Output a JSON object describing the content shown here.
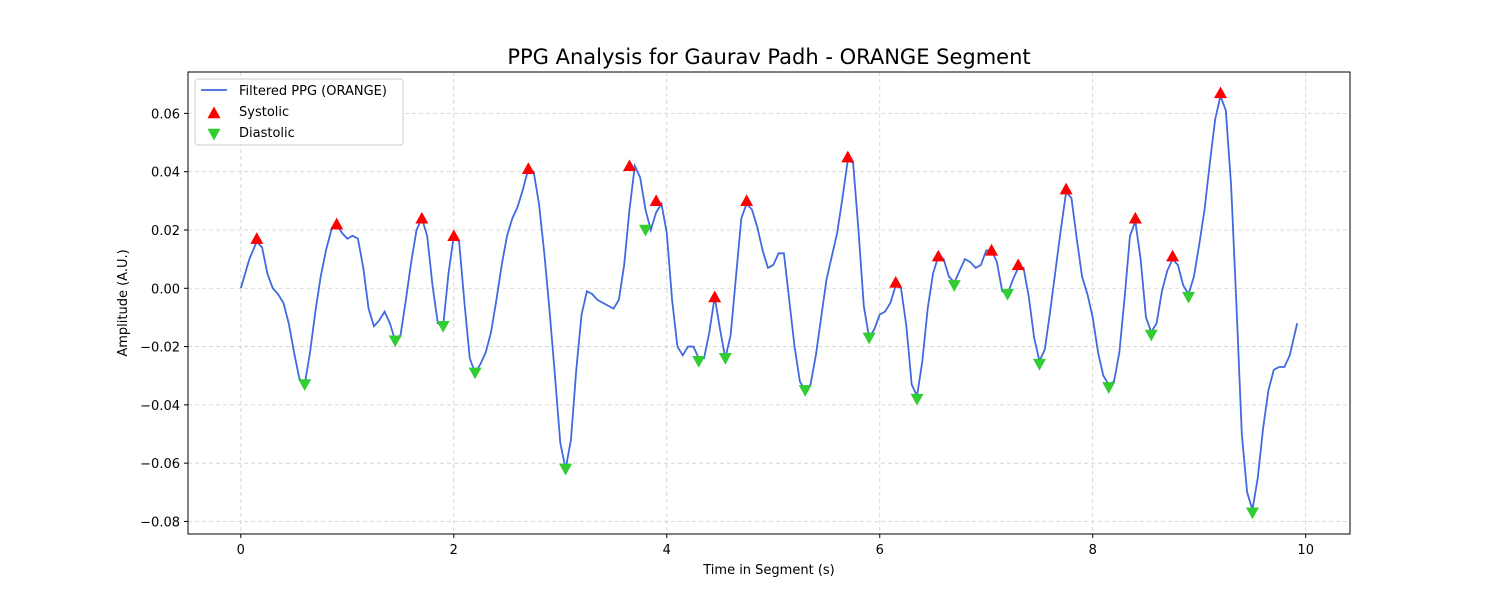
{
  "chart_data": {
    "type": "line",
    "title": "PPG Analysis for Gaurav Padh - ORANGE Segment",
    "xlabel": "Time in Segment (s)",
    "ylabel": "Amplitude (A.U.)",
    "xlim": [
      -0.496,
      10.416
    ],
    "ylim": [
      -0.0843,
      0.0742
    ],
    "xticks": [
      0,
      2,
      4,
      6,
      8,
      10
    ],
    "yticks": [
      {
        "value": -0.08,
        "label": "−0.08"
      },
      {
        "value": -0.06,
        "label": "−0.06"
      },
      {
        "value": -0.04,
        "label": "−0.04"
      },
      {
        "value": -0.02,
        "label": "−0.02"
      },
      {
        "value": 0,
        "label": "0.00"
      },
      {
        "value": 0.02,
        "label": "0.02"
      },
      {
        "value": 0.04,
        "label": "0.04"
      },
      {
        "value": 0.06,
        "label": "0.06"
      }
    ],
    "grid": true,
    "legend": "upper left",
    "series": [
      {
        "name": "Filtered PPG (ORANGE)",
        "color": "#4169e1",
        "marker": "line",
        "x": [
          0,
          0.08,
          0.15,
          0.2,
          0.25,
          0.3,
          0.35,
          0.4,
          0.45,
          0.5,
          0.55,
          0.6,
          0.65,
          0.7,
          0.75,
          0.8,
          0.85,
          0.9,
          0.95,
          1.0,
          1.05,
          1.1,
          1.15,
          1.2,
          1.25,
          1.3,
          1.35,
          1.4,
          1.45,
          1.5,
          1.55,
          1.6,
          1.65,
          1.7,
          1.75,
          1.8,
          1.85,
          1.9,
          1.95,
          2.0,
          2.05,
          2.1,
          2.15,
          2.2,
          2.25,
          2.3,
          2.35,
          2.4,
          2.45,
          2.5,
          2.55,
          2.6,
          2.65,
          2.7,
          2.75,
          2.8,
          2.85,
          2.9,
          2.95,
          3.0,
          3.05,
          3.1,
          3.15,
          3.2,
          3.25,
          3.3,
          3.35,
          3.4,
          3.45,
          3.5,
          3.55,
          3.6,
          3.65,
          3.7,
          3.75,
          3.8,
          3.85,
          3.9,
          3.95,
          4.0,
          4.05,
          4.1,
          4.15,
          4.2,
          4.25,
          4.3,
          4.35,
          4.4,
          4.45,
          4.5,
          4.55,
          4.6,
          4.65,
          4.7,
          4.75,
          4.8,
          4.85,
          4.9,
          4.95,
          5.0,
          5.05,
          5.1,
          5.15,
          5.2,
          5.25,
          5.3,
          5.35,
          5.4,
          5.45,
          5.5,
          5.55,
          5.6,
          5.65,
          5.7,
          5.75,
          5.8,
          5.85,
          5.9,
          5.95,
          6.0,
          6.05,
          6.1,
          6.15,
          6.2,
          6.25,
          6.3,
          6.35,
          6.4,
          6.45,
          6.5,
          6.55,
          6.6,
          6.65,
          6.7,
          6.75,
          6.8,
          6.85,
          6.9,
          6.95,
          7.0,
          7.05,
          7.1,
          7.15,
          7.2,
          7.25,
          7.3,
          7.35,
          7.4,
          7.45,
          7.5,
          7.55,
          7.6,
          7.65,
          7.7,
          7.75,
          7.8,
          7.85,
          7.9,
          7.95,
          8.0,
          8.05,
          8.1,
          8.15,
          8.2,
          8.25,
          8.3,
          8.35,
          8.4,
          8.45,
          8.5,
          8.55,
          8.6,
          8.65,
          8.7,
          8.75,
          8.8,
          8.85,
          8.9,
          8.95,
          9.0,
          9.05,
          9.1,
          9.15,
          9.2,
          9.25,
          9.3,
          9.35,
          9.4,
          9.45,
          9.5,
          9.55,
          9.6,
          9.65,
          9.7,
          9.75,
          9.8,
          9.85,
          9.92
        ],
        "values": [
          0,
          0.01,
          0.016,
          0.014,
          0.005,
          0,
          -0.002,
          -0.005,
          -0.012,
          -0.022,
          -0.031,
          -0.033,
          -0.022,
          -0.008,
          0.004,
          0.013,
          0.02,
          0.022,
          0.019,
          0.017,
          0.018,
          0.017,
          0.007,
          -0.007,
          -0.013,
          -0.011,
          -0.008,
          -0.012,
          -0.018,
          -0.016,
          -0.004,
          0.009,
          0.02,
          0.024,
          0.018,
          0.001,
          -0.012,
          -0.013,
          0.005,
          0.018,
          0.016,
          -0.005,
          -0.024,
          -0.029,
          -0.026,
          -0.022,
          -0.015,
          -0.004,
          0.008,
          0.018,
          0.024,
          0.028,
          0.034,
          0.041,
          0.04,
          0.029,
          0.012,
          -0.008,
          -0.03,
          -0.053,
          -0.062,
          -0.052,
          -0.028,
          -0.009,
          -0.001,
          -0.002,
          -0.004,
          -0.005,
          -0.006,
          -0.007,
          -0.004,
          0.008,
          0.027,
          0.042,
          0.038,
          0.027,
          0.02,
          0.026,
          0.029,
          0.019,
          -0.004,
          -0.02,
          -0.023,
          -0.02,
          -0.02,
          -0.024,
          -0.024,
          -0.015,
          -0.003,
          -0.014,
          -0.024,
          -0.016,
          0.004,
          0.024,
          0.029,
          0.027,
          0.021,
          0.013,
          0.007,
          0.008,
          0.012,
          0.012,
          -0.004,
          -0.02,
          -0.032,
          -0.035,
          -0.033,
          -0.023,
          -0.01,
          0.003,
          0.011,
          0.019,
          0.031,
          0.044,
          0.043,
          0.02,
          -0.006,
          -0.017,
          -0.014,
          -0.009,
          -0.008,
          -0.005,
          0.001,
          0,
          -0.013,
          -0.033,
          -0.037,
          -0.025,
          -0.007,
          0.005,
          0.011,
          0.01,
          0.004,
          0.002,
          0.006,
          0.01,
          0.009,
          0.007,
          0.008,
          0.013,
          0.013,
          0.009,
          -0.001,
          -0.002,
          0.003,
          0.007,
          0.007,
          -0.003,
          -0.017,
          -0.025,
          -0.021,
          -0.008,
          0.006,
          0.02,
          0.033,
          0.031,
          0.017,
          0.004,
          -0.002,
          -0.01,
          -0.022,
          -0.03,
          -0.033,
          -0.032,
          -0.022,
          -0.003,
          0.018,
          0.023,
          0.01,
          -0.01,
          -0.015,
          -0.012,
          -0.001,
          0.006,
          0.01,
          0.008,
          0.001,
          -0.002,
          0.004,
          0.015,
          0.027,
          0.043,
          0.058,
          0.066,
          0.061,
          0.035,
          -0.006,
          -0.05,
          -0.07,
          -0.076,
          -0.065,
          -0.048,
          -0.035,
          -0.028,
          -0.027,
          -0.027,
          -0.023,
          -0.012
        ]
      },
      {
        "name": "Systolic",
        "color": "#ff0000",
        "marker": "up",
        "x": [
          0.15,
          0.9,
          1.7,
          2.0,
          2.7,
          3.65,
          3.9,
          4.45,
          4.75,
          5.7,
          6.15,
          6.55,
          7.05,
          7.3,
          7.75,
          8.4,
          8.75,
          9.2
        ],
        "values": [
          0.017,
          0.022,
          0.024,
          0.018,
          0.041,
          0.042,
          0.03,
          -0.003,
          0.03,
          0.045,
          0.002,
          0.011,
          0.013,
          0.008,
          0.034,
          0.024,
          0.011,
          0.067
        ]
      },
      {
        "name": "Diastolic",
        "color": "#32cd32",
        "marker": "down",
        "x": [
          0.6,
          1.45,
          1.9,
          2.2,
          3.05,
          3.8,
          4.3,
          4.55,
          5.3,
          5.9,
          6.35,
          6.7,
          7.2,
          7.5,
          8.15,
          8.55,
          8.9,
          9.5
        ],
        "values": [
          -0.033,
          -0.018,
          -0.013,
          -0.029,
          -0.062,
          0.02,
          -0.025,
          -0.024,
          -0.035,
          -0.017,
          -0.038,
          0.001,
          -0.002,
          -0.026,
          -0.034,
          -0.016,
          -0.003,
          -0.077
        ]
      }
    ]
  }
}
